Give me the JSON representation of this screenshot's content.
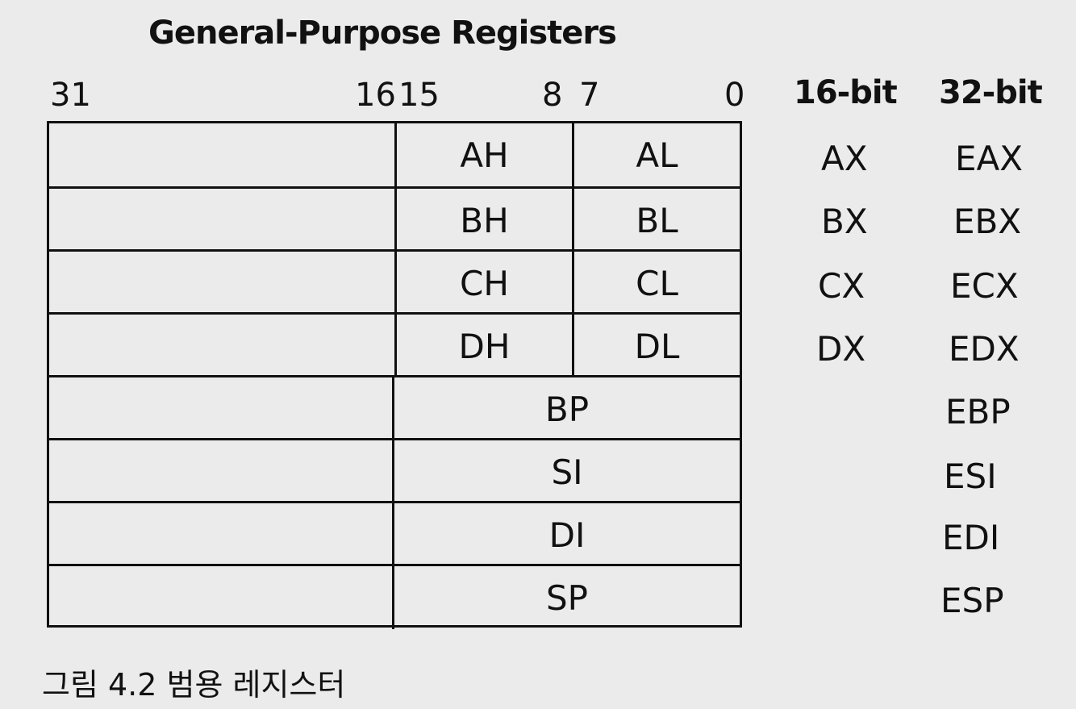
{
  "title": "General-Purpose Registers",
  "bit_labels": {
    "b31": "31",
    "b16": "16",
    "b15": "15",
    "b8": "8",
    "b7": "7",
    "b0": "0"
  },
  "column_headers": {
    "sixteen_bit": "16-bit",
    "thirty_two_bit": "32-bit"
  },
  "rows": [
    {
      "high": "AH",
      "low": "AL",
      "reg16": "AX",
      "reg32": "EAX"
    },
    {
      "high": "BH",
      "low": "BL",
      "reg16": "BX",
      "reg32": "EBX"
    },
    {
      "high": "CH",
      "low": "CL",
      "reg16": "CX",
      "reg32": "ECX"
    },
    {
      "high": "DH",
      "low": "DL",
      "reg16": "DX",
      "reg32": "EDX"
    },
    {
      "reg16": "BP",
      "reg32": "EBP"
    },
    {
      "reg16": "SI",
      "reg32": "ESI"
    },
    {
      "reg16": "DI",
      "reg32": "EDI"
    },
    {
      "reg16": "SP",
      "reg32": "ESP"
    }
  ],
  "caption": "그림 4.2 범용 레지스터"
}
